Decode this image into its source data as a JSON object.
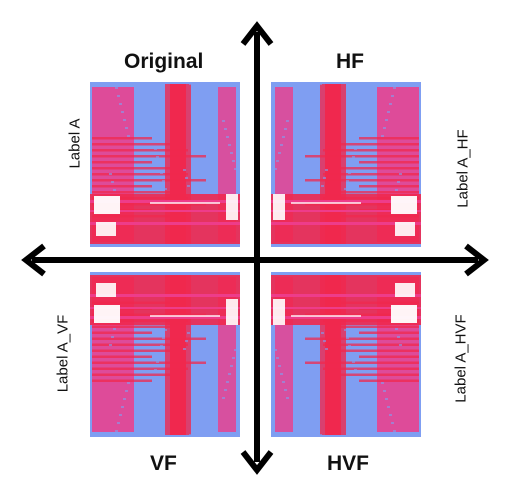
{
  "quadrants": {
    "original": {
      "title": "Original",
      "label": "Label A"
    },
    "hf": {
      "title": "HF",
      "label": "Label A_HF"
    },
    "vf": {
      "title": "VF",
      "label": "Label A_VF"
    },
    "hvf": {
      "title": "HVF",
      "label": "Label A_HVF"
    }
  },
  "colors": {
    "background_blue": "#7f9ef2",
    "pink": "#ee3c8a",
    "red": "#f0284e",
    "white": "#ffffff",
    "axis": "#000000"
  }
}
